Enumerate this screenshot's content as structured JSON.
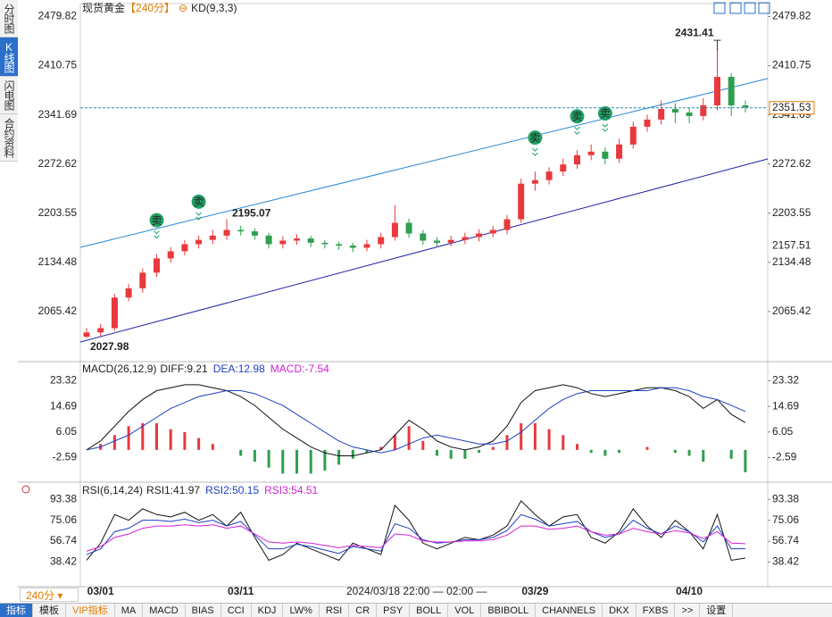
{
  "ui": {
    "sidebar": [
      "分时图",
      "K线图",
      "闪电图",
      "合约资料"
    ],
    "sidebar_active": 1,
    "period_tab": "240分",
    "crosshair_time": "2024/03/18 22:00 — 02:00 —",
    "toolbar": [
      "指标",
      "模板",
      "VIP指标",
      "MA",
      "MACD",
      "BIAS",
      "CCI",
      "KDJ",
      "LW%",
      "RSI",
      "CR",
      "PSY",
      "BOLL",
      "VOL",
      "BBIBOLL",
      "CHANNELS",
      "DKX",
      "FXBS",
      ">>",
      "设置"
    ],
    "toolbar_active": 0,
    "toolbar_highlight": 2
  },
  "chart_data": [
    {
      "type": "candlestick",
      "title": "现货黄金",
      "subtitle": "【240分】",
      "indicator": "KD(9,3,3)",
      "categories": [
        null,
        "03/01",
        null,
        null,
        null,
        null,
        null,
        null,
        null,
        null,
        null,
        "03/11",
        null,
        null,
        null,
        null,
        null,
        null,
        null,
        null,
        null,
        null,
        null,
        null,
        null,
        null,
        null,
        null,
        null,
        null,
        null,
        null,
        "03/29",
        null,
        null,
        null,
        null,
        null,
        null,
        null,
        null,
        null,
        null,
        "04/10",
        null,
        null,
        null,
        null
      ],
      "open": [
        2030,
        2036,
        2042,
        2085,
        2098,
        2120,
        2140,
        2150,
        2160,
        2166,
        2172,
        2180,
        2178,
        2172,
        2160,
        2165,
        2168,
        2162,
        2160,
        2158,
        2155,
        2160,
        2170,
        2190,
        2175,
        2165,
        2162,
        2166,
        2170,
        2175,
        2180,
        2195,
        2245,
        2250,
        2262,
        2272,
        2285,
        2290,
        2280,
        2300,
        2325,
        2335,
        2350,
        2345,
        2340,
        2355,
        2395,
        2355
      ],
      "high": [
        2042,
        2048,
        2090,
        2104,
        2126,
        2146,
        2156,
        2166,
        2172,
        2180,
        2195.07,
        2186,
        2182,
        2176,
        2171,
        2174,
        2172,
        2166,
        2164,
        2162,
        2166,
        2176,
        2215,
        2196,
        2180,
        2170,
        2172,
        2176,
        2181,
        2186,
        2201,
        2252,
        2262,
        2268,
        2280,
        2292,
        2300,
        2296,
        2308,
        2332,
        2342,
        2362,
        2358,
        2352,
        2365,
        2431.41,
        2400,
        2362
      ],
      "low": [
        2027.98,
        2030,
        2038,
        2080,
        2092,
        2114,
        2134,
        2144,
        2154,
        2160,
        2166,
        2172,
        2166,
        2154,
        2154,
        2159,
        2156,
        2154,
        2152,
        2149,
        2150,
        2154,
        2165,
        2169,
        2159,
        2156,
        2157,
        2160,
        2164,
        2170,
        2174,
        2190,
        2235,
        2244,
        2256,
        2266,
        2278,
        2272,
        2274,
        2294,
        2318,
        2328,
        2330,
        2330,
        2334,
        2348,
        2340,
        2345
      ],
      "close": [
        2036,
        2042,
        2085,
        2098,
        2120,
        2140,
        2150,
        2160,
        2166,
        2172,
        2180,
        2178,
        2172,
        2160,
        2165,
        2168,
        2162,
        2160,
        2158,
        2155,
        2160,
        2170,
        2190,
        2175,
        2165,
        2162,
        2166,
        2170,
        2175,
        2180,
        2195,
        2245,
        2250,
        2262,
        2272,
        2285,
        2290,
        2280,
        2300,
        2325,
        2335,
        2350,
        2345,
        2340,
        2355,
        2395,
        2355,
        2352
      ],
      "up_color": "#e8393d",
      "down_color": "#2e9e4f",
      "ylim": [
        1995,
        2498
      ],
      "yticks": [
        2479.82,
        2410.75,
        2341.69,
        2272.62,
        2203.55,
        2134.48,
        2065.42
      ],
      "max_label": {
        "index": 45,
        "value": 2431.41
      },
      "mid_label": {
        "index": 10,
        "value": 2195.07
      },
      "min_label": {
        "index": 0,
        "value": 2027.98
      },
      "signal_label": "卖",
      "signals": [
        5,
        8,
        32,
        35,
        37
      ],
      "last_price": 2351.53,
      "ref_price": 2157.51
    },
    {
      "type": "macd",
      "title": "MACD(26,12,9)",
      "series": [
        {
          "name": "DIFF:9.21",
          "color": "#111111",
          "values": [
            0,
            3,
            8,
            13,
            17,
            20,
            21,
            22,
            22,
            21,
            20,
            18,
            15,
            11,
            7,
            4,
            1,
            -1,
            -2,
            -2,
            -1,
            0,
            5,
            10,
            7,
            3,
            1,
            0,
            1,
            3,
            8,
            16,
            20,
            21,
            22,
            21,
            19,
            18,
            19,
            20,
            21,
            21,
            20,
            18,
            14,
            17,
            12,
            9.21
          ]
        },
        {
          "name": "DEA:12.98",
          "color": "#1f3fbf",
          "values": [
            0,
            1,
            3,
            5,
            8,
            11,
            14,
            16,
            18,
            19,
            20,
            20,
            19,
            17,
            15,
            12,
            9,
            6,
            3,
            1,
            0,
            -1,
            0,
            2,
            4,
            5,
            4,
            3,
            2,
            2,
            3,
            6,
            10,
            14,
            17,
            19,
            20,
            20,
            20,
            20,
            20,
            21,
            21,
            20,
            18,
            17,
            15,
            12.98
          ]
        }
      ],
      "hist": {
        "name": "MACD:-7.54",
        "color": "#d51fd5",
        "values": [
          0,
          2,
          5,
          8,
          9,
          9,
          7,
          6,
          4,
          2,
          0,
          -2,
          -4,
          -6,
          -8,
          -8,
          -8,
          -7,
          -5,
          -3,
          -1,
          1,
          5,
          8,
          3,
          -2,
          -3,
          -3,
          -1,
          1,
          5,
          9,
          9,
          7,
          5,
          2,
          -1,
          -2,
          -1,
          0,
          1,
          0,
          -1,
          -2,
          -4,
          0,
          -3,
          -7.54
        ]
      },
      "ylim": [
        -10.3,
        28.9
      ],
      "yticks": [
        23.32,
        14.69,
        6.05,
        -2.59
      ]
    },
    {
      "type": "rsi",
      "title": "RSI(6,14,24)",
      "series": [
        {
          "name": "RSI1:41.97",
          "color": "#111111",
          "values": [
            40,
            55,
            80,
            75,
            85,
            80,
            78,
            82,
            75,
            80,
            70,
            82,
            60,
            40,
            45,
            55,
            50,
            45,
            40,
            55,
            50,
            45,
            88,
            75,
            55,
            50,
            55,
            60,
            58,
            62,
            70,
            92,
            80,
            70,
            78,
            80,
            60,
            55,
            65,
            85,
            70,
            60,
            75,
            65,
            50,
            80,
            40,
            41.97
          ]
        },
        {
          "name": "RSI2:50.15",
          "color": "#1f3fbf",
          "values": [
            45,
            50,
            65,
            68,
            75,
            75,
            74,
            76,
            73,
            75,
            70,
            74,
            62,
            50,
            50,
            54,
            52,
            49,
            46,
            52,
            50,
            48,
            72,
            68,
            58,
            55,
            56,
            58,
            58,
            60,
            66,
            80,
            76,
            70,
            72,
            74,
            65,
            60,
            63,
            75,
            68,
            63,
            70,
            65,
            56,
            70,
            50,
            50.15
          ]
        },
        {
          "name": "RSI3:54.51",
          "color": "#d51fd5",
          "values": [
            48,
            52,
            60,
            63,
            68,
            70,
            70,
            71,
            70,
            71,
            68,
            70,
            63,
            56,
            55,
            56,
            55,
            53,
            51,
            53,
            52,
            51,
            63,
            62,
            57,
            56,
            56,
            57,
            57,
            58,
            62,
            70,
            70,
            67,
            68,
            70,
            65,
            62,
            63,
            68,
            65,
            63,
            66,
            64,
            59,
            65,
            55,
            54.51
          ]
        }
      ],
      "ylim": [
        18.5,
        106
      ],
      "yticks": [
        93.38,
        75.06,
        56.74,
        38.42
      ]
    }
  ]
}
